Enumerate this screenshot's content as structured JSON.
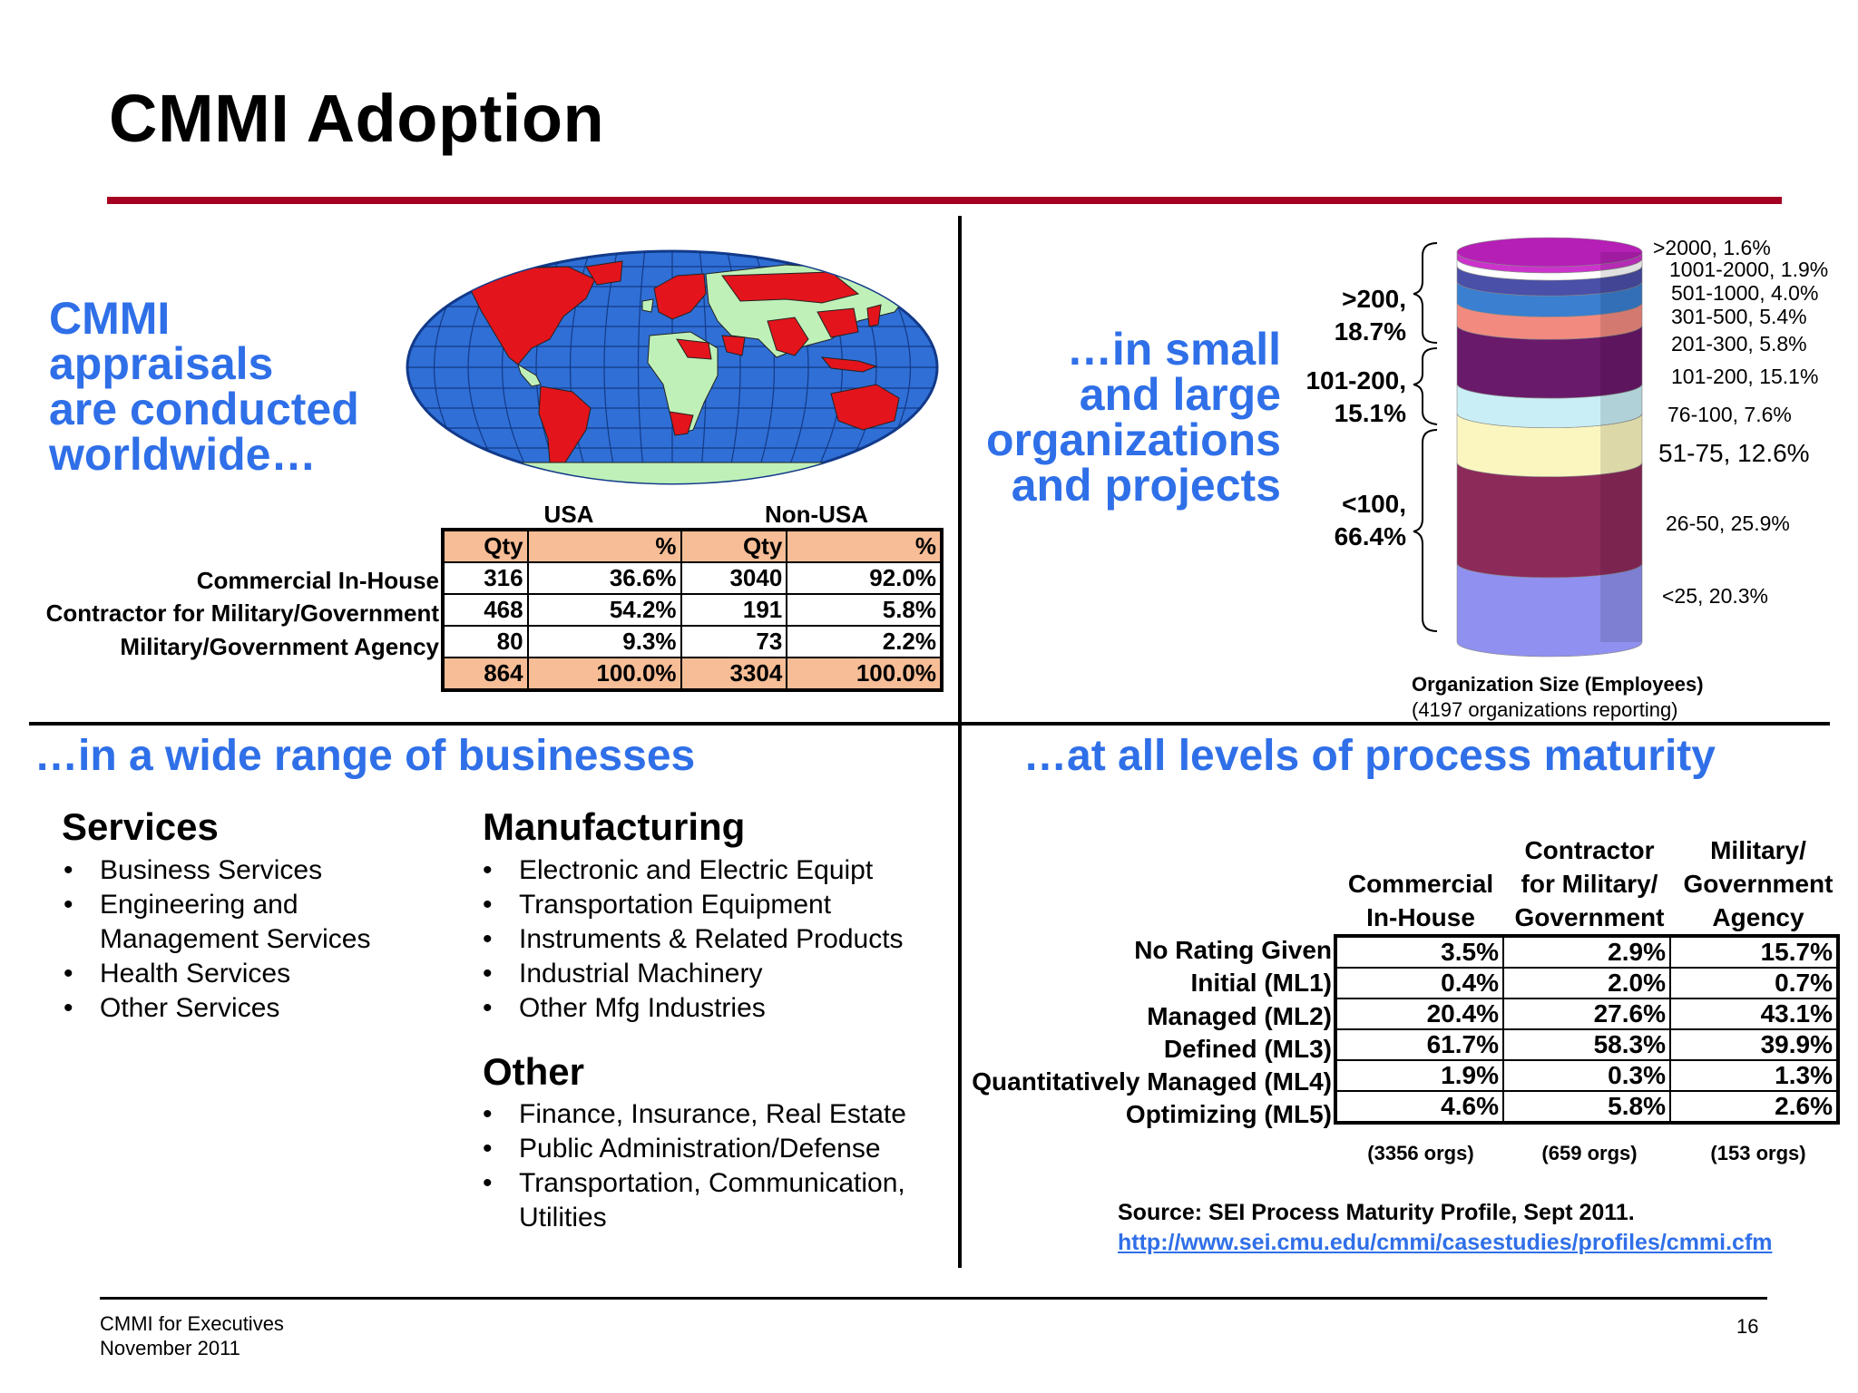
{
  "slide": {
    "title": "CMMI Adoption",
    "page_number": "16",
    "footer_line1": "CMMI for Executives",
    "footer_line2": "November 2011"
  },
  "worldwide": {
    "heading_lines": [
      "CMMI",
      "appraisals",
      "are conducted",
      "worldwide…"
    ],
    "group_headers": [
      "USA",
      "Non-USA"
    ],
    "col_headers": [
      "Qty",
      "%",
      "Qty",
      "%"
    ],
    "rows": [
      {
        "label": "Commercial In-House",
        "values": [
          "316",
          "36.6%",
          "3040",
          "92.0%"
        ]
      },
      {
        "label": "Contractor for Military/Government",
        "values": [
          "468",
          "54.2%",
          "191",
          "5.8%"
        ]
      },
      {
        "label": "Military/Government Agency",
        "values": [
          "80",
          "9.3%",
          "73",
          "2.2%"
        ]
      }
    ],
    "totals": [
      "864",
      "100.0%",
      "3304",
      "100.0%"
    ]
  },
  "org_size": {
    "heading_lines": [
      "…in small",
      "and large",
      "organizations",
      "and projects"
    ],
    "brace_labels": [
      {
        "l1": ">200,",
        "l2": "18.7%"
      },
      {
        "l1": "101-200,",
        "l2": "15.1%"
      },
      {
        "l1": "<100,",
        "l2": "66.4%"
      }
    ],
    "segment_labels": [
      ">2000, 1.6%",
      "1001-2000, 1.9%",
      "501-1000, 4.0%",
      "301-500, 5.4%",
      "201-300, 5.8%",
      "101-200, 15.1%",
      "76-100, 7.6%",
      "51-75, 12.6%",
      "26-50, 25.9%",
      "<25, 20.3%"
    ],
    "caption": "Organization Size (Employees)",
    "subcaption": "(4197 organizations reporting)",
    "colors": [
      "#cc33cc",
      "#ffffff",
      "#4a4fa8",
      "#3a7fd0",
      "#f28a80",
      "#6a1a6a",
      "#c9eef6",
      "#fbf6c0",
      "#8c2a5a",
      "#9090f0"
    ]
  },
  "chart_data": {
    "type": "bar",
    "title": "Organization Size (Employees)",
    "subtitle": "(4197 organizations reporting)",
    "categories": [
      "<25",
      "26-50",
      "51-75",
      "76-100",
      "101-200",
      "201-300",
      "301-500",
      "501-1000",
      "1001-2000",
      ">2000"
    ],
    "values": [
      20.3,
      25.9,
      12.6,
      7.6,
      15.1,
      5.8,
      5.4,
      4.0,
      1.9,
      1.6
    ],
    "stacked": true,
    "unit": "%"
  },
  "businesses": {
    "heading": "…in a wide range of businesses",
    "services": {
      "title": "Services",
      "items": [
        "Business Services",
        "Engineering and Management Services",
        "Health Services",
        "Other Services"
      ]
    },
    "manufacturing": {
      "title": "Manufacturing",
      "items": [
        "Electronic and Electric  Equipt",
        "Transportation Equipment",
        "Instruments & Related Products",
        "Industrial Machinery",
        "Other Mfg Industries"
      ]
    },
    "other": {
      "title": "Other",
      "items": [
        "Finance, Insurance, Real Estate",
        "Public Administration/Defense",
        "Transportation, Communication, Utilities"
      ]
    }
  },
  "maturity": {
    "heading": "…at all levels of process maturity",
    "columns": [
      {
        "lines": [
          "Commercial",
          "In-House"
        ],
        "orgs": "(3356 orgs)"
      },
      {
        "lines": [
          "Contractor",
          "for Military/",
          "Government"
        ],
        "orgs": "(659 orgs)"
      },
      {
        "lines": [
          "Military/",
          "Government",
          "Agency"
        ],
        "orgs": "(153 orgs)"
      }
    ],
    "rows": [
      {
        "label": "No Rating Given",
        "values": [
          "3.5%",
          "2.9%",
          "15.7%"
        ]
      },
      {
        "label": "Initial (ML1)",
        "values": [
          "0.4%",
          "2.0%",
          "0.7%"
        ]
      },
      {
        "label": "Managed (ML2)",
        "values": [
          "20.4%",
          "27.6%",
          "43.1%"
        ]
      },
      {
        "label": "Defined (ML3)",
        "values": [
          "61.7%",
          "58.3%",
          "39.9%"
        ]
      },
      {
        "label": "Quantitatively Managed (ML4)",
        "values": [
          "1.9%",
          "0.3%",
          "1.3%"
        ]
      },
      {
        "label": "Optimizing (ML5)",
        "values": [
          "4.6%",
          "5.8%",
          "2.6%"
        ]
      }
    ],
    "source": "Source: SEI Process Maturity Profile, Sept 2011.",
    "url": "http://www.sei.cmu.edu/cmmi/casestudies/profiles/cmmi.cfm"
  }
}
